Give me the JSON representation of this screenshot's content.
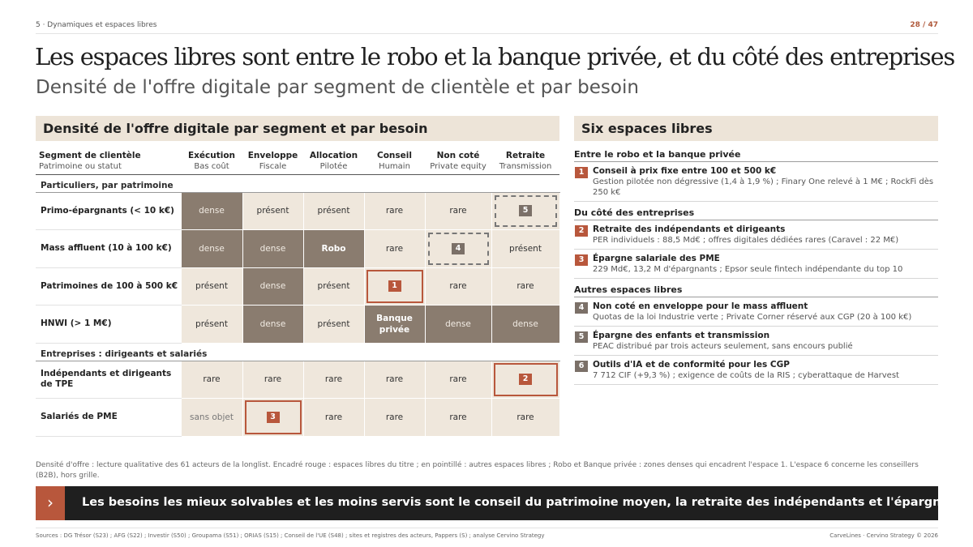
{
  "header": {
    "section": "5 · Dynamiques et espaces libres",
    "page": "28 / 47"
  },
  "title": "Les espaces libres sont entre le robo et la banque privée, et du côté des entreprises",
  "subtitle": "Densité de l'offre digitale par segment de clientèle et par besoin",
  "left_panel": {
    "heading": "Densité de l'offre digitale par segment et par besoin",
    "seg_header": "Segment de clientèle",
    "seg_sub": "Patrimoine ou statut",
    "columns": [
      {
        "label": "Exécution",
        "sub": "Bas coût"
      },
      {
        "label": "Enveloppe",
        "sub": "Fiscale"
      },
      {
        "label": "Allocation",
        "sub": "Pilotée"
      },
      {
        "label": "Conseil",
        "sub": "Humain"
      },
      {
        "label": "Non coté",
        "sub": "Private equity"
      },
      {
        "label": "Retraite",
        "sub": "Transmission"
      }
    ],
    "groups": [
      {
        "label": "Particuliers, par patrimoine",
        "rows": [
          {
            "label": "Primo-épargnants (< 10 k€)",
            "cells": [
              "dense",
              "présent",
              "présent",
              "rare",
              "rare",
              ""
            ],
            "badge": "5"
          },
          {
            "label": "Mass affluent (10 à 100 k€)",
            "cells": [
              "dense",
              "dense",
              "Robo",
              "rare",
              "",
              "présent"
            ],
            "badge": "4"
          },
          {
            "label": "Patrimoines de 100 à 500 k€",
            "cells": [
              "présent",
              "dense",
              "présent",
              "",
              "rare",
              "rare"
            ],
            "badge": "1"
          },
          {
            "label": "HNWI (> 1 M€)",
            "cells": [
              "présent",
              "dense",
              "présent",
              "Banque privée",
              "dense",
              "dense"
            ]
          }
        ]
      },
      {
        "label": "Entreprises : dirigeants et salariés",
        "rows": [
          {
            "label": "Indépendants et dirigeants de TPE",
            "cells": [
              "rare",
              "rare",
              "rare",
              "rare",
              "rare",
              ""
            ],
            "badge": "2"
          },
          {
            "label": "Salariés de PME",
            "cells": [
              "sans objet",
              "",
              "rare",
              "rare",
              "rare",
              "rare"
            ],
            "badge": "3"
          }
        ]
      }
    ]
  },
  "right_panel": {
    "heading": "Six espaces libres",
    "groups": [
      {
        "label": "Entre le robo et la banque privée",
        "items": [
          {
            "num": "1",
            "title": "Conseil à prix fixe entre 100 et 500 k€",
            "desc": "Gestion pilotée non dégressive (1,4 à 1,9 %) ; Finary One relevé à 1 M€ ; RockFi dès 250 k€",
            "color": "#b8573c"
          }
        ]
      },
      {
        "label": "Du côté des entreprises",
        "items": [
          {
            "num": "2",
            "title": "Retraite des indépendants et dirigeants",
            "desc": "PER individuels : 88,5 Md€ ; offres digitales dédiées rares (Caravel : 22 M€)",
            "color": "#b8573c"
          },
          {
            "num": "3",
            "title": "Épargne salariale des PME",
            "desc": "229 Md€, 13,2 M d'épargnants ; Epsor seule fintech indépendante du top 10",
            "color": "#b8573c"
          }
        ]
      },
      {
        "label": "Autres espaces libres",
        "items": [
          {
            "num": "4",
            "title": "Non coté en enveloppe pour le mass affluent",
            "desc": "Quotas de la loi Industrie verte ; Private Corner réservé aux CGP (20 à 100 k€)",
            "color": "#7b7068"
          },
          {
            "num": "5",
            "title": "Épargne des enfants et transmission",
            "desc": "PEAC distribué par trois acteurs seulement, sans encours publié",
            "color": "#7b7068"
          },
          {
            "num": "6",
            "title": "Outils d'IA et de conformité pour les CGP",
            "desc": "7 712 CIF (+9,3 %) ; exigence de coûts de la RIS ; cyberattaque de Harvest",
            "color": "#7b7068"
          }
        ]
      }
    ]
  },
  "note": "Densité d'offre : lecture qualitative des 61 acteurs de la longlist. Encadré rouge : espaces libres du titre ; en pointillé : autres espaces libres ; Robo et Banque privée : zones denses qui encadrent l'espace 1. L'espace 6 concerne les conseillers (B2B), hors grille.",
  "banner": "Les besoins les mieux solvables et les moins servis sont le conseil du patrimoine moyen, la retraite des indépendants et l'épargne des PME.",
  "footer": {
    "sources": "Sources : DG Trésor (S23) ; AFG (S22) ; Investir (S50) ; Groupama (S51) ; ORIAS (S15) ; Conseil de l'UE (S48) ; sites et registres des acteurs, Pappers (S) ; analyse Cervino Strategy",
    "credit": "CarveLines · Cervino Strategy © 2026"
  },
  "colors": {
    "accent": "#b8573c",
    "dense": "#8a7c6f",
    "cell": "#efe7dc",
    "panel": "#ede4d8",
    "banner": "#1f1f1f"
  }
}
